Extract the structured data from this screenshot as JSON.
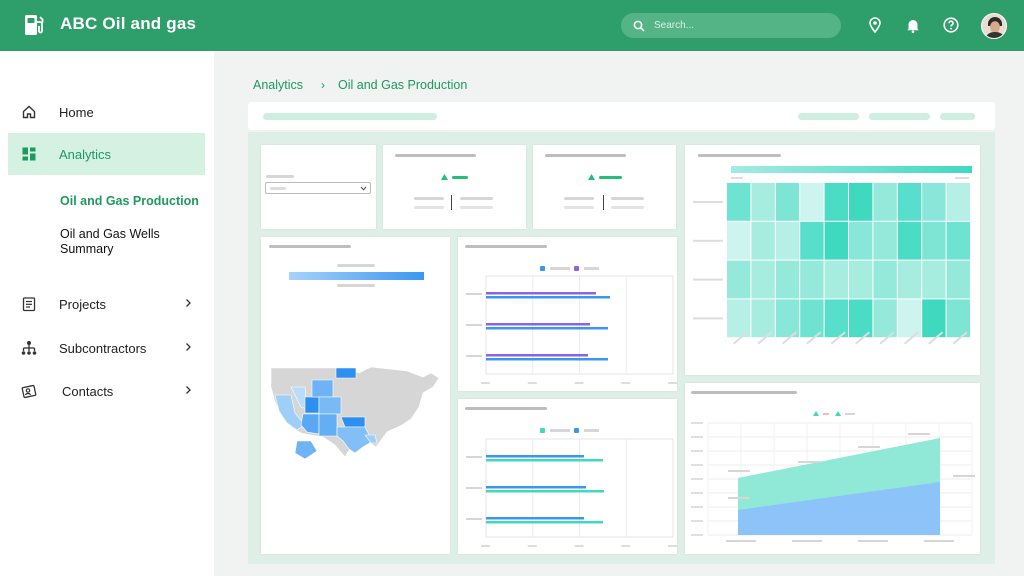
{
  "app": {
    "title": "ABC Oil and gas"
  },
  "search": {
    "placeholder": "Search..."
  },
  "sidebar": {
    "items": [
      {
        "label": "Home"
      },
      {
        "label": "Analytics"
      },
      {
        "label": "Projects"
      },
      {
        "label": "Subcontractors"
      },
      {
        "label": "Contacts"
      }
    ],
    "sub_items": [
      {
        "label": "Oil and Gas Production"
      },
      {
        "label": "Oil and Gas Wells Summary"
      }
    ]
  },
  "breadcrumb": {
    "root": "Analytics",
    "separator": "›",
    "current": "Oil and Gas Production"
  },
  "colors": {
    "brand": "#2e9e6b",
    "active_bg": "#d4f1e1",
    "accent_text": "#1e9960",
    "bar_blue": "#3a97f0",
    "bar_purple": "#8a63e6",
    "bar_teal": "#3fd9c0",
    "area_blue": "#8cc4fa",
    "area_teal": "#8fe9d6"
  },
  "icons": {
    "logo": "fuel-pump-icon",
    "search": "search-icon",
    "location": "location-pin-icon",
    "notifications": "bell-icon",
    "help": "help-icon",
    "home": "home-icon",
    "analytics": "dashboard-icon",
    "projects": "document-icon",
    "subcontractors": "org-chart-icon",
    "contacts": "contacts-icon"
  }
}
